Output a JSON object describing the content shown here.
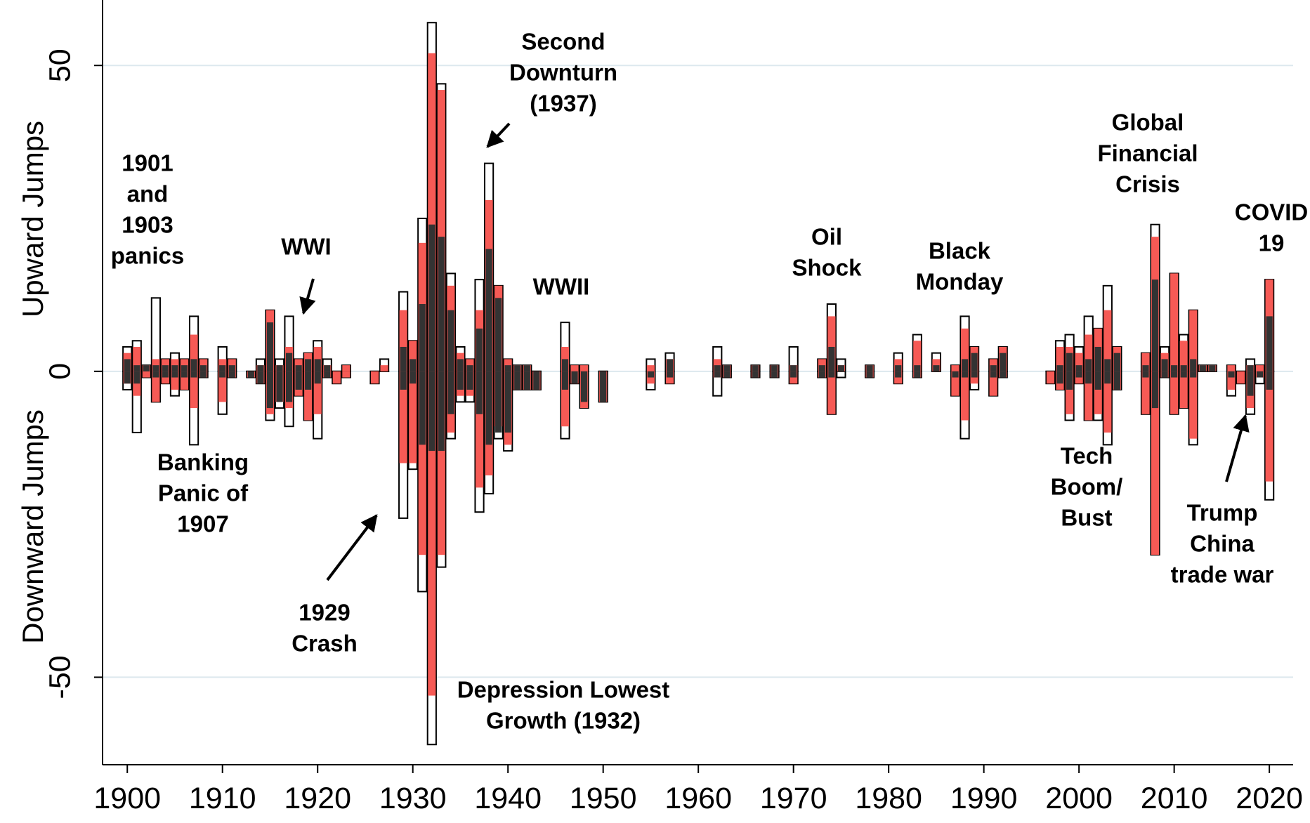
{
  "chart_data": {
    "type": "bar",
    "y_label_top": "Upward Jumps",
    "y_label_bottom": "Downward Jumps",
    "x": [
      1900,
      1901,
      1902,
      1903,
      1904,
      1905,
      1906,
      1907,
      1908,
      1910,
      1911,
      1913,
      1914,
      1915,
      1916,
      1917,
      1918,
      1919,
      1920,
      1921,
      1922,
      1923,
      1926,
      1927,
      1929,
      1930,
      1931,
      1932,
      1933,
      1934,
      1935,
      1936,
      1937,
      1938,
      1939,
      1940,
      1941,
      1942,
      1943,
      1946,
      1947,
      1948,
      1950,
      1955,
      1957,
      1962,
      1963,
      1966,
      1968,
      1970,
      1973,
      1974,
      1975,
      1978,
      1981,
      1983,
      1985,
      1987,
      1988,
      1989,
      1991,
      1992,
      1997,
      1998,
      1999,
      2000,
      2001,
      2002,
      2003,
      2004,
      2007,
      2008,
      2009,
      2010,
      2011,
      2012,
      2013,
      2014,
      2016,
      2017,
      2018,
      2019,
      2020
    ],
    "series": [
      {
        "color": "#ffffff",
        "stroke": "#000000",
        "values": [
          4,
          5,
          1,
          12,
          2,
          3,
          2,
          9,
          2,
          4,
          2,
          0,
          2,
          10,
          2,
          9,
          2,
          3,
          5,
          2,
          0,
          1,
          0,
          2,
          13,
          5,
          25,
          57,
          47,
          16,
          4,
          2,
          15,
          34,
          14,
          2,
          1,
          1,
          0,
          8,
          1,
          1,
          0,
          2,
          3,
          4,
          1,
          1,
          1,
          4,
          2,
          11,
          2,
          1,
          3,
          6,
          3,
          1,
          9,
          4,
          2,
          4,
          0,
          5,
          6,
          4,
          9,
          7,
          14,
          4,
          3,
          24,
          4,
          16,
          6,
          10,
          1,
          1,
          1,
          0,
          2,
          1,
          15
        ]
      },
      {
        "color": "#ffffff",
        "stroke": "#000000",
        "values": [
          -3,
          -10,
          -1,
          -5,
          -2,
          -4,
          -3,
          -12,
          -1,
          -7,
          -1,
          -1,
          -2,
          -8,
          -6,
          -9,
          -4,
          -8,
          -11,
          -1,
          -2,
          -1,
          -2,
          0,
          -24,
          -16,
          -36,
          -61,
          -32,
          -11,
          -5,
          -5,
          -23,
          -20,
          -11,
          -13,
          -3,
          -3,
          -3,
          -11,
          -2,
          -6,
          -5,
          -3,
          -2,
          -4,
          -1,
          -1,
          -1,
          -2,
          -1,
          -7,
          -1,
          -1,
          -2,
          -1,
          0,
          -4,
          -11,
          -3,
          -4,
          -1,
          -2,
          -3,
          -8,
          -2,
          -8,
          -8,
          -12,
          -3,
          -7,
          -30,
          -1,
          -7,
          -6,
          -12,
          0,
          0,
          -4,
          -2,
          -7,
          -2,
          -21
        ]
      },
      {
        "color": "#f65a55",
        "values": [
          3,
          4,
          1,
          2,
          2,
          2,
          2,
          6,
          2,
          2,
          2,
          0,
          1,
          10,
          1,
          4,
          2,
          3,
          4,
          1,
          0,
          1,
          0,
          1,
          10,
          5,
          21,
          52,
          46,
          14,
          3,
          2,
          10,
          28,
          14,
          2,
          1,
          1,
          0,
          4,
          1,
          1,
          0,
          1,
          2,
          2,
          1,
          1,
          1,
          1,
          2,
          9,
          1,
          1,
          2,
          5,
          2,
          1,
          7,
          4,
          2,
          4,
          0,
          4,
          4,
          3,
          6,
          7,
          10,
          4,
          3,
          22,
          3,
          16,
          5,
          10,
          1,
          1,
          1,
          0,
          1,
          1,
          15
        ]
      },
      {
        "color": "#f65a55",
        "values": [
          -2,
          -4,
          -1,
          -5,
          -2,
          -3,
          -3,
          -6,
          -1,
          -5,
          -1,
          -1,
          -2,
          -7,
          -5,
          -6,
          -4,
          -8,
          -7,
          -1,
          -2,
          -1,
          -2,
          0,
          -15,
          -15,
          -30,
          -53,
          -30,
          -10,
          -4,
          -4,
          -19,
          -17,
          -9,
          -12,
          -3,
          -3,
          -3,
          -9,
          -2,
          -6,
          -5,
          -2,
          -2,
          -1,
          -1,
          -1,
          -1,
          -2,
          -1,
          -7,
          0,
          -1,
          -2,
          -1,
          0,
          -4,
          -8,
          -2,
          -4,
          -1,
          -2,
          -3,
          -7,
          -2,
          -8,
          -7,
          -10,
          -3,
          -7,
          -30,
          -1,
          -7,
          -6,
          -11,
          0,
          0,
          -3,
          -2,
          -6,
          -1,
          -18
        ]
      },
      {
        "color": "#333333",
        "values": [
          2,
          1,
          1,
          1,
          1,
          1,
          1,
          2,
          1,
          1,
          1,
          0,
          1,
          8,
          1,
          3,
          1,
          2,
          2,
          1,
          0,
          0,
          0,
          0,
          4,
          2,
          11,
          24,
          22,
          10,
          2,
          1,
          7,
          20,
          12,
          1,
          1,
          1,
          0,
          2,
          0,
          0,
          0,
          0,
          2,
          1,
          1,
          1,
          1,
          1,
          1,
          4,
          1,
          1,
          1,
          1,
          1,
          0,
          2,
          3,
          1,
          3,
          0,
          1,
          3,
          1,
          2,
          4,
          2,
          3,
          1,
          15,
          2,
          1,
          1,
          2,
          1,
          1,
          0,
          0,
          1,
          0,
          9
        ]
      },
      {
        "color": "#333333",
        "values": [
          -2,
          -2,
          0,
          -1,
          -1,
          -1,
          -1,
          -1,
          -1,
          -1,
          -1,
          -1,
          -2,
          -6,
          -5,
          -5,
          -3,
          -3,
          -2,
          -1,
          0,
          0,
          0,
          0,
          -3,
          -2,
          -12,
          -13,
          -13,
          -7,
          -3,
          -3,
          -7,
          -12,
          -10,
          -10,
          -3,
          -3,
          -3,
          -3,
          -2,
          -5,
          -5,
          -1,
          -1,
          -1,
          -1,
          -1,
          -1,
          -1,
          -1,
          -1,
          0,
          -1,
          -1,
          -1,
          0,
          -1,
          -1,
          -1,
          -1,
          -1,
          0,
          -2,
          -3,
          -1,
          -2,
          -3,
          -2,
          -3,
          -1,
          -6,
          -1,
          -1,
          -1,
          -1,
          0,
          0,
          -1,
          0,
          -4,
          -1,
          -3
        ]
      }
    ],
    "xlim": [
      1897.4,
      2022.5
    ],
    "ylim": [
      -64.3,
      60.7
    ],
    "xticks": [
      1900,
      1910,
      1920,
      1930,
      1940,
      1950,
      1960,
      1970,
      1980,
      1990,
      2000,
      2010,
      2020
    ],
    "yticks": [
      -50,
      0,
      50
    ],
    "grid": true,
    "annotations": [
      [
        "1901",
        "and",
        "1903",
        "panics"
      ],
      [
        "WWI"
      ],
      [
        "Banking",
        "Panic of",
        "1907"
      ],
      [
        "1929",
        "Crash"
      ],
      [
        "Second",
        "Downturn",
        "(1937)"
      ],
      [
        "WWII"
      ],
      [
        "Depression Lowest",
        "Growth (1932)"
      ],
      [
        "Oil",
        "Shock"
      ],
      [
        "Black",
        "Monday"
      ],
      [
        "Global",
        "Financial",
        "Crisis"
      ],
      [
        "Tech",
        "Boom/",
        "Bust"
      ],
      [
        "COVID",
        "19"
      ],
      [
        "Trump",
        "China",
        "trade war"
      ]
    ]
  }
}
